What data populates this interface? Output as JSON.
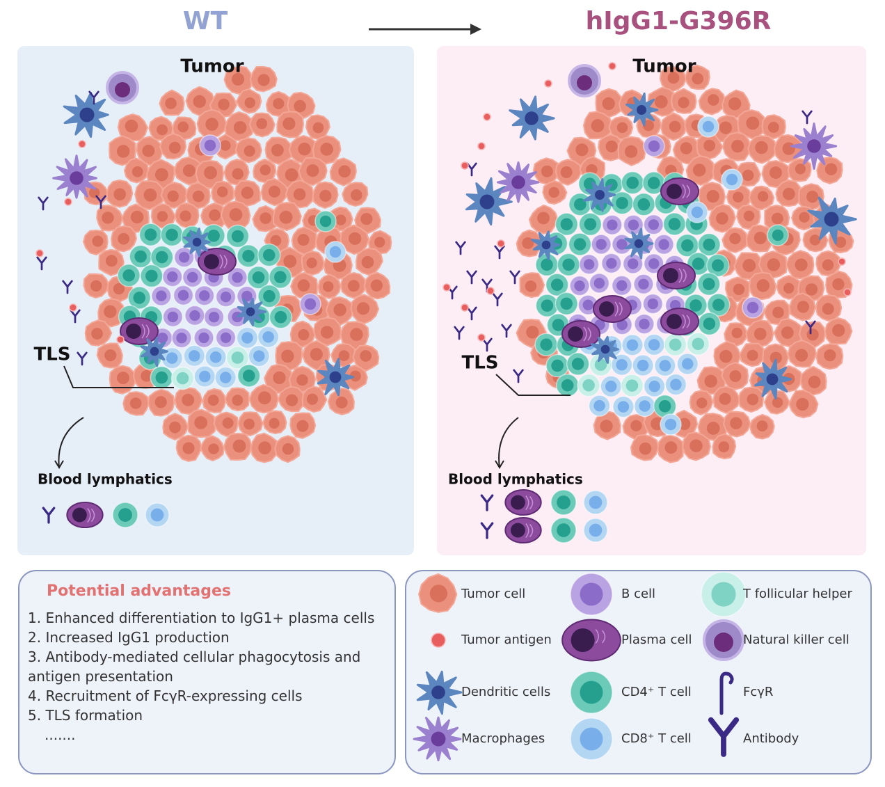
{
  "header": {
    "left_title": "WT",
    "right_title": "hIgG1-G396R"
  },
  "panels": [
    {
      "tumor_label": "Tumor",
      "tls_label": "TLS",
      "blood_label": "Blood lymphatics"
    },
    {
      "tumor_label": "Tumor",
      "tls_label": "TLS",
      "blood_label": "Blood lymphatics"
    }
  ],
  "advantages": {
    "title": "Potential advantages",
    "items": [
      "1. Enhanced differentiation to IgG1+ plasma cells",
      "2. Increased IgG1 production",
      "3. Antibody-mediated cellular phagocytosis and antigen presentation",
      "4. Recruitment of FcγR-expressing cells",
      "5. TLS formation"
    ],
    "ellipsis": "......."
  },
  "legend": {
    "items": [
      {
        "label": "Tumor cell"
      },
      {
        "label": "Tumor antigen"
      },
      {
        "label": "Dendritic cells"
      },
      {
        "label": "Macrophages"
      },
      {
        "label": "B cell"
      },
      {
        "label": "Plasma cell"
      },
      {
        "label": "CD4⁺ T cell"
      },
      {
        "label": "CD8⁺ T cell"
      },
      {
        "label": "T follicular helper"
      },
      {
        "label": "Natural killer cell"
      },
      {
        "label": "FcγR"
      },
      {
        "label": "Antibody"
      }
    ]
  }
}
